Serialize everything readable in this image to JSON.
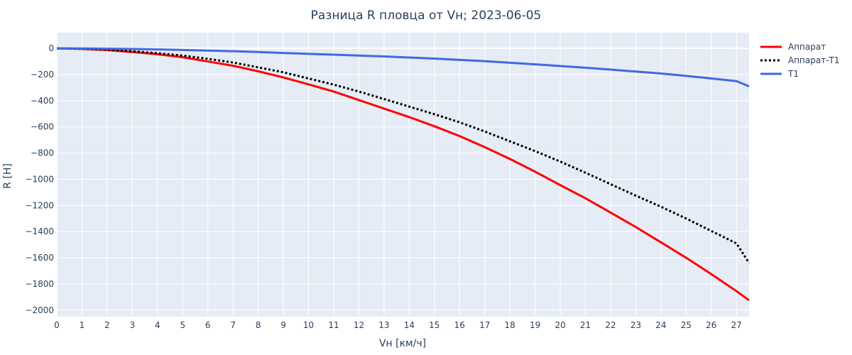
{
  "chart_data": {
    "type": "line",
    "title": "Разница R пловца от Vн; 2023-06-05",
    "xlabel": "Vн [км/ч]",
    "ylabel": "R [Н]",
    "xlim": [
      0,
      27.5
    ],
    "ylim": [
      -2050,
      120
    ],
    "xticks": [
      0,
      1,
      2,
      3,
      4,
      5,
      6,
      7,
      8,
      9,
      10,
      11,
      12,
      13,
      14,
      15,
      16,
      17,
      18,
      19,
      20,
      21,
      22,
      23,
      24,
      25,
      26,
      27
    ],
    "yticks": [
      0,
      -200,
      -400,
      -600,
      -800,
      -1000,
      -1200,
      -1400,
      -1600,
      -1800,
      -2000
    ],
    "ytick_labels": [
      "0",
      "−200",
      "−400",
      "−600",
      "−800",
      "−1000",
      "−1200",
      "−1400",
      "−1600",
      "−1800",
      "−2000"
    ],
    "grid": true,
    "legend_position": "top-right",
    "plot_background": "#e5ecf6",
    "x": [
      0,
      1,
      2,
      3,
      4,
      5,
      6,
      7,
      8,
      9,
      10,
      11,
      12,
      13,
      14,
      15,
      16,
      17,
      18,
      19,
      20,
      21,
      22,
      23,
      24,
      25,
      26,
      27,
      27.5
    ],
    "series": [
      {
        "name": "Аппарат",
        "color": "#ff0000",
        "dash": "solid",
        "values": [
          0,
          -4,
          -13,
          -28,
          -45,
          -68,
          -100,
          -133,
          -175,
          -222,
          -275,
          -330,
          -395,
          -460,
          -525,
          -595,
          -670,
          -755,
          -845,
          -942,
          -1045,
          -1145,
          -1255,
          -1365,
          -1482,
          -1600,
          -1725,
          -1855,
          -1925
        ]
      },
      {
        "name": "Аппарат-Т1",
        "color": "#000000",
        "dash": "dot",
        "values": [
          0,
          -3,
          -10,
          -22,
          -37,
          -55,
          -80,
          -108,
          -145,
          -183,
          -230,
          -277,
          -330,
          -387,
          -445,
          -503,
          -565,
          -635,
          -710,
          -785,
          -865,
          -950,
          -1038,
          -1125,
          -1210,
          -1300,
          -1395,
          -1490,
          -1640
        ]
      },
      {
        "name": "Т1",
        "color": "#4169e1",
        "dash": "solid",
        "values": [
          0,
          -1,
          -3,
          -5,
          -8,
          -12,
          -17,
          -22,
          -28,
          -35,
          -42,
          -48,
          -55,
          -62,
          -70,
          -78,
          -88,
          -98,
          -110,
          -122,
          -135,
          -148,
          -162,
          -177,
          -192,
          -210,
          -230,
          -250,
          -290
        ]
      }
    ]
  }
}
